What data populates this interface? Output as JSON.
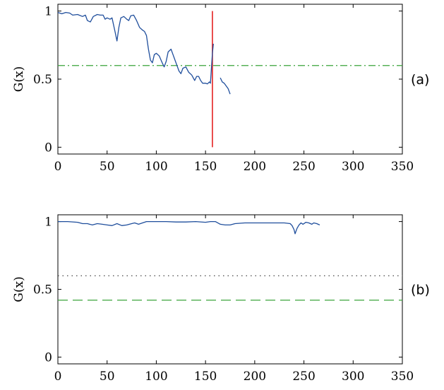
{
  "chart_data": [
    {
      "type": "line",
      "panel_label": "(a)",
      "ylabel": "G(x)",
      "xlim": [
        0,
        350
      ],
      "ylim": [
        -0.05,
        1.05
      ],
      "x_ticks": [
        "0",
        "50",
        "100",
        "150",
        "200",
        "250",
        "300",
        "350"
      ],
      "y_ticks": [
        "0",
        "0.5",
        "1"
      ],
      "x_tick_values": [
        0,
        50,
        100,
        150,
        200,
        250,
        300,
        350
      ],
      "y_tick_values": [
        0,
        0.5,
        1
      ],
      "series": [
        {
          "color": "#1f4e9c",
          "style": "solid",
          "segments": [
            [
              [
                0,
                0.99
              ],
              [
                4,
                0.98
              ],
              [
                8,
                0.99
              ],
              [
                12,
                0.985
              ],
              [
                15,
                0.97
              ],
              [
                20,
                0.975
              ],
              [
                25,
                0.96
              ],
              [
                28,
                0.97
              ],
              [
                30,
                0.93
              ],
              [
                33,
                0.92
              ],
              [
                36,
                0.96
              ],
              [
                40,
                0.975
              ],
              [
                43,
                0.97
              ],
              [
                46,
                0.97
              ],
              [
                48,
                0.94
              ],
              [
                50,
                0.95
              ],
              [
                53,
                0.94
              ],
              [
                55,
                0.95
              ],
              [
                58,
                0.85
              ],
              [
                60,
                0.78
              ],
              [
                62,
                0.88
              ],
              [
                64,
                0.95
              ],
              [
                67,
                0.96
              ],
              [
                70,
                0.94
              ],
              [
                72,
                0.93
              ],
              [
                74,
                0.965
              ],
              [
                77,
                0.97
              ],
              [
                80,
                0.93
              ],
              [
                83,
                0.88
              ],
              [
                86,
                0.86
              ],
              [
                88,
                0.85
              ],
              [
                90,
                0.82
              ],
              [
                92,
                0.72
              ],
              [
                94,
                0.64
              ],
              [
                96,
                0.62
              ],
              [
                98,
                0.68
              ],
              [
                100,
                0.69
              ],
              [
                103,
                0.67
              ],
              [
                106,
                0.62
              ],
              [
                108,
                0.59
              ],
              [
                110,
                0.63
              ],
              [
                112,
                0.7
              ],
              [
                115,
                0.72
              ],
              [
                117,
                0.68
              ],
              [
                119,
                0.64
              ],
              [
                121,
                0.6
              ],
              [
                123,
                0.56
              ],
              [
                125,
                0.54
              ],
              [
                127,
                0.58
              ],
              [
                130,
                0.59
              ],
              [
                133,
                0.55
              ],
              [
                136,
                0.53
              ],
              [
                139,
                0.49
              ],
              [
                141,
                0.52
              ],
              [
                143,
                0.52
              ],
              [
                145,
                0.49
              ],
              [
                147,
                0.47
              ],
              [
                150,
                0.47
              ],
              [
                152,
                0.465
              ],
              [
                154,
                0.48
              ],
              [
                155,
                0.47
              ],
              [
                157,
                0.69
              ],
              [
                158,
                0.76
              ]
            ],
            [
              [
                165,
                0.51
              ],
              [
                167,
                0.48
              ],
              [
                169,
                0.47
              ],
              [
                171,
                0.45
              ],
              [
                173,
                0.43
              ],
              [
                174,
                0.41
              ],
              [
                175,
                0.39
              ]
            ]
          ]
        }
      ],
      "hlines": [
        {
          "y": 0.6,
          "color": "#3aa33a",
          "style": "dashdot"
        }
      ],
      "vlines": [
        {
          "x": 157,
          "ymin": 0,
          "ymax": 1,
          "color": "#e32222",
          "style": "solid"
        }
      ]
    },
    {
      "type": "line",
      "panel_label": "(b)",
      "ylabel": "G(x)",
      "xlim": [
        0,
        350
      ],
      "ylim": [
        -0.05,
        1.05
      ],
      "x_ticks": [
        "0",
        "50",
        "100",
        "150",
        "200",
        "250",
        "300",
        "350"
      ],
      "y_ticks": [
        "0",
        "0.5",
        "1"
      ],
      "x_tick_values": [
        0,
        50,
        100,
        150,
        200,
        250,
        300,
        350
      ],
      "y_tick_values": [
        0,
        0.5,
        1
      ],
      "series": [
        {
          "color": "#1f4e9c",
          "style": "solid",
          "segments": [
            [
              [
                0,
                1.0
              ],
              [
                10,
                1.0
              ],
              [
                20,
                0.995
              ],
              [
                25,
                0.985
              ],
              [
                30,
                0.985
              ],
              [
                35,
                0.975
              ],
              [
                40,
                0.985
              ],
              [
                45,
                0.98
              ],
              [
                50,
                0.975
              ],
              [
                55,
                0.97
              ],
              [
                60,
                0.985
              ],
              [
                65,
                0.97
              ],
              [
                70,
                0.975
              ],
              [
                75,
                0.985
              ],
              [
                78,
                0.99
              ],
              [
                82,
                0.98
              ],
              [
                86,
                0.99
              ],
              [
                90,
                1.0
              ],
              [
                100,
                1.0
              ],
              [
                110,
                1.0
              ],
              [
                120,
                0.997
              ],
              [
                130,
                0.997
              ],
              [
                140,
                1.0
              ],
              [
                150,
                0.995
              ],
              [
                155,
                1.0
              ],
              [
                160,
                1.0
              ],
              [
                165,
                0.98
              ],
              [
                170,
                0.975
              ],
              [
                175,
                0.975
              ],
              [
                180,
                0.985
              ],
              [
                190,
                0.99
              ],
              [
                200,
                0.99
              ],
              [
                210,
                0.99
              ],
              [
                220,
                0.99
              ],
              [
                230,
                0.99
              ],
              [
                236,
                0.985
              ],
              [
                238,
                0.97
              ],
              [
                240,
                0.94
              ],
              [
                241,
                0.91
              ],
              [
                243,
                0.95
              ],
              [
                245,
                0.975
              ],
              [
                247,
                0.99
              ],
              [
                249,
                0.98
              ],
              [
                252,
                0.995
              ],
              [
                255,
                0.99
              ],
              [
                258,
                0.98
              ],
              [
                260,
                0.99
              ],
              [
                263,
                0.985
              ],
              [
                266,
                0.975
              ]
            ]
          ]
        }
      ],
      "hlines": [
        {
          "y": 0.6,
          "color": "#333333",
          "style": "dotted"
        },
        {
          "y": 0.42,
          "color": "#3aa33a",
          "style": "dashed"
        }
      ],
      "vlines": []
    }
  ]
}
